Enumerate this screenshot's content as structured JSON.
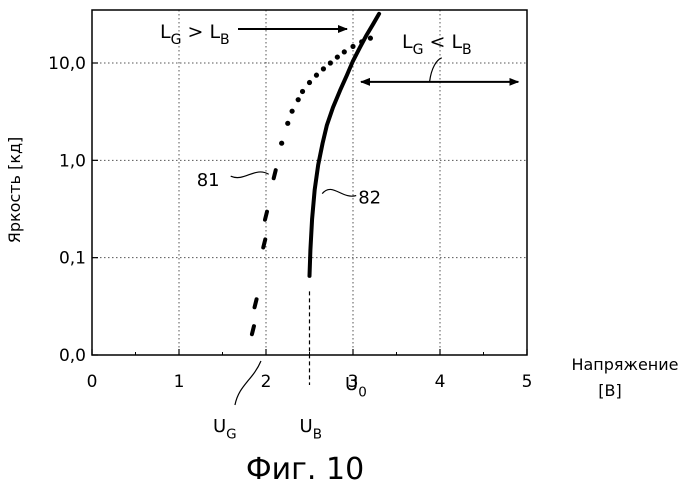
{
  "chart_data": {
    "type": "scatter",
    "ylabel": "Яркость [кд]",
    "xlabel_line1": "Напряжение",
    "xlabel_line2": "[В]",
    "xlim": [
      0,
      5
    ],
    "ylim_log": [
      0.01,
      30
    ],
    "y_scale": "log",
    "grid": "dotted",
    "x_ticks": [
      "0",
      "1",
      "2",
      "3",
      "4",
      "5"
    ],
    "y_ticks": [
      {
        "value": 0.01,
        "label": "0,0"
      },
      {
        "value": 0.1,
        "label": "0,1"
      },
      {
        "value": 1,
        "label": "1,0"
      },
      {
        "value": 10,
        "label": "10,0"
      }
    ],
    "series": [
      {
        "name": "81",
        "style": "dotted",
        "x": [
          1.85,
          1.88,
          1.98,
          2.0,
          2.1,
          2.18,
          2.25,
          2.3,
          2.37,
          2.42,
          2.5,
          2.58,
          2.66,
          2.74,
          2.82,
          2.9,
          3.0,
          3.1,
          3.2
        ],
        "y": [
          0.018,
          0.034,
          0.14,
          0.27,
          0.72,
          1.5,
          2.4,
          3.2,
          4.2,
          5.1,
          6.3,
          7.5,
          8.7,
          10.0,
          11.5,
          13.0,
          14.8,
          16.5,
          18.0
        ]
      },
      {
        "name": "82",
        "style": "solid",
        "x": [
          2.5,
          2.51,
          2.53,
          2.56,
          2.6,
          2.65,
          2.7,
          2.77,
          2.85,
          2.93,
          3.0,
          3.08,
          3.15,
          3.23,
          3.3
        ],
        "y": [
          0.065,
          0.12,
          0.25,
          0.5,
          0.9,
          1.5,
          2.3,
          3.5,
          5.2,
          7.5,
          10.5,
          14.5,
          19.0,
          25.0,
          32.0
        ]
      }
    ],
    "markers": {
      "UG": {
        "x": 1.85,
        "label_main": "U",
        "label_sub": "G"
      },
      "UB": {
        "x": 2.5,
        "label_main": "U",
        "label_sub": "B"
      },
      "U0": {
        "x": 3.0,
        "label_main": "U",
        "label_sub": "0"
      }
    },
    "annotations": {
      "left_region": {
        "part1": "L",
        "sub1": "G",
        "op": "> L",
        "sub2": "B",
        "arrow_to_x": 3.0
      },
      "right_region": {
        "part1": "L",
        "sub1": "G",
        "op": "< L",
        "sub2": "B",
        "x_from": 3.0,
        "x_to": 4.9
      }
    },
    "caption": "Фиг. 10"
  }
}
